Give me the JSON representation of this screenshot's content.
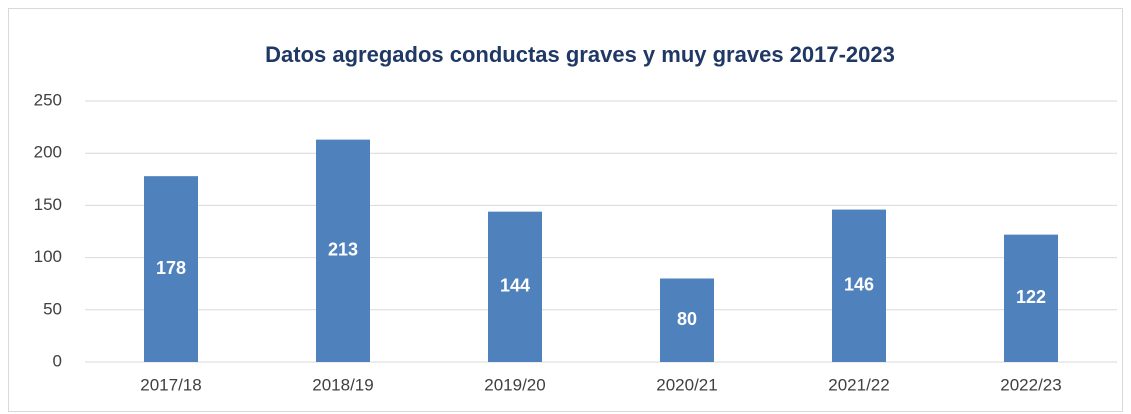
{
  "chart_data": {
    "type": "bar",
    "title": "Datos agregados conductas graves y muy graves 2017-2023",
    "categories": [
      "2017/18",
      "2018/19",
      "2019/20",
      "2020/21",
      "2021/22",
      "2022/23"
    ],
    "values": [
      178,
      213,
      144,
      80,
      146,
      122
    ],
    "color": "#4f81bd",
    "ylim": [
      0,
      250
    ],
    "yticks": [
      0,
      50,
      100,
      150,
      200,
      250
    ],
    "grid": true
  }
}
